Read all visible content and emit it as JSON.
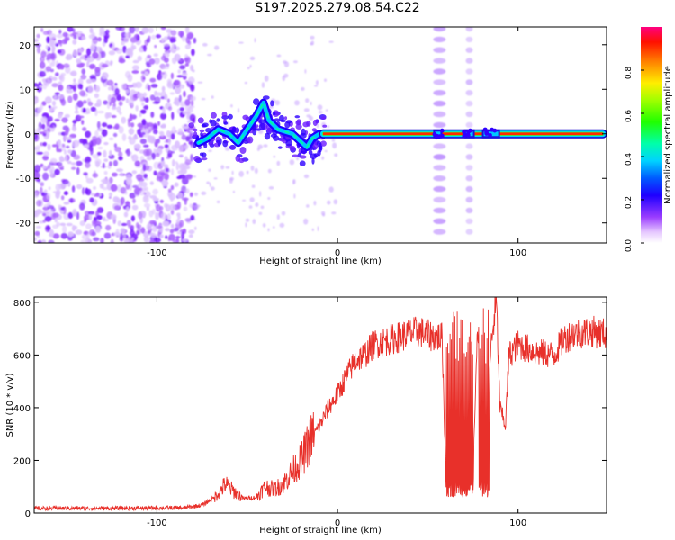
{
  "title": "S197.2025.279.08.54.C22",
  "colors": {
    "snr_line": "#e8302a",
    "colormap": [
      "#ffffff",
      "#cc66ff",
      "#6a00ff",
      "#0000ff",
      "#00c8ff",
      "#00ff80",
      "#80ff00",
      "#ffee00",
      "#ff8000",
      "#ff0000",
      "#ff0080"
    ]
  },
  "chart_data": [
    {
      "type": "heatmap",
      "name": "spectrogram",
      "title": "",
      "xlabel": "Height of straight line (km)",
      "ylabel": "Frequency (Hz)",
      "xlim": [
        -168,
        149
      ],
      "ylim": [
        -24.5,
        24
      ],
      "xticks": [
        -100,
        0,
        100
      ],
      "yticks": [
        -20,
        -10,
        0,
        10,
        20
      ],
      "colorbar": {
        "label": "Normalized spectral amplitude",
        "range": [
          0,
          1
        ],
        "ticks": [
          0.0,
          0.2,
          0.4,
          0.6,
          0.8
        ]
      },
      "features": [
        {
          "name": "broadband noise",
          "x_range": [
            -168,
            -79
          ],
          "f_range": [
            -24.5,
            24
          ],
          "amplitude": 0.05
        },
        {
          "name": "wandering trace",
          "points": [
            [
              -77,
              -2
            ],
            [
              -72,
              -1
            ],
            [
              -66,
              1
            ],
            [
              -60,
              0
            ],
            [
              -55,
              -2
            ],
            [
              -50,
              1
            ],
            [
              -45,
              4
            ],
            [
              -41,
              7
            ],
            [
              -38,
              3
            ],
            [
              -33,
              1
            ],
            [
              -29,
              0.5
            ],
            [
              -25,
              0
            ],
            [
              -21,
              -1.5
            ],
            [
              -17,
              -3
            ],
            [
              -14,
              -1
            ],
            [
              -10,
              0
            ]
          ],
          "amplitude": 0.3
        },
        {
          "name": "steady carrier",
          "x_range": [
            -10,
            149
          ],
          "frequency": 0,
          "amplitude": 1.0
        },
        {
          "name": "harmonic smear A",
          "x_range": [
            53,
            60
          ],
          "amplitude": 0.06
        },
        {
          "name": "harmonic smear B",
          "x_range": [
            71,
            75
          ],
          "amplitude": 0.05
        }
      ]
    },
    {
      "type": "line",
      "name": "snr",
      "title": "",
      "xlabel": "Height of straight line (km)",
      "ylabel": "SNR (10 * v/v)",
      "xlim": [
        -168,
        149
      ],
      "ylim": [
        0,
        820
      ],
      "xticks": [
        -100,
        0,
        100
      ],
      "yticks": [
        0,
        200,
        400,
        600,
        800
      ],
      "series": [
        {
          "name": "SNR",
          "x": [
            -168,
            -120,
            -85,
            -75,
            -68,
            -62,
            -57,
            -52,
            -45,
            -40,
            -35,
            -30,
            -25,
            -20,
            -15,
            -10,
            -5,
            0,
            5,
            10,
            15,
            20,
            25,
            30,
            35,
            40,
            45,
            50,
            55,
            58,
            60,
            62,
            70,
            75,
            77,
            80,
            82,
            85,
            88,
            90,
            93,
            95,
            100,
            110,
            120,
            125,
            130,
            140,
            149
          ],
          "values": [
            18,
            18,
            20,
            30,
            60,
            110,
            80,
            55,
            60,
            100,
            90,
            110,
            160,
            200,
            280,
            330,
            400,
            450,
            520,
            580,
            600,
            640,
            650,
            660,
            670,
            680,
            690,
            675,
            670,
            665,
            120,
            110,
            100,
            95,
            640,
            620,
            70,
            640,
            800,
            400,
            330,
            600,
            640,
            610,
            600,
            660,
            680,
            690,
            680
          ],
          "drop_spikes": [
            [
              60,
              75
            ],
            [
              78,
              84
            ]
          ]
        }
      ]
    }
  ]
}
